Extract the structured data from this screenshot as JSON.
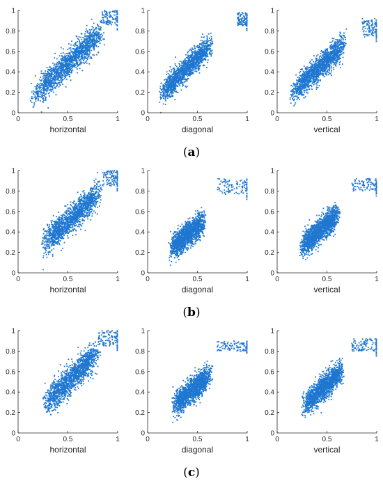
{
  "marker_color": "#1f77d0",
  "captions": [
    "(a)",
    "(b)",
    "(c)"
  ],
  "chart_data": [
    {
      "panel": "a",
      "type": "scatter",
      "xlabel": "horizontal",
      "ylabel": "",
      "xlim": [
        0,
        1
      ],
      "ylim": [
        0,
        1
      ],
      "xticks": [
        "0",
        "0.5",
        "1"
      ],
      "yticks": [
        "0",
        "0.2",
        "0.4",
        "0.6",
        "0.8",
        "1"
      ],
      "x_range": [
        0.0,
        1.0
      ],
      "trend": {
        "slope": 0.9,
        "intercept": 0.03
      },
      "spread_sd": 0.07,
      "top_cluster": {
        "x": [
          0.83,
          1.0
        ],
        "y": [
          0.86,
          1.0
        ]
      }
    },
    {
      "panel": "a",
      "type": "scatter",
      "xlabel": "diagonal",
      "ylabel": "",
      "xlim": [
        0,
        1
      ],
      "ylim": [
        0,
        1
      ],
      "xticks": [
        "0",
        "0.5",
        "1"
      ],
      "yticks": [
        "0",
        "0.2",
        "0.4",
        "0.6",
        "0.8",
        "1"
      ],
      "x_range": [
        0.02,
        0.75
      ],
      "trend": {
        "slope": 0.95,
        "intercept": 0.06
      },
      "spread_sd": 0.06,
      "top_cluster": {
        "x": [
          0.9,
          1.0
        ],
        "y": [
          0.85,
          0.98
        ]
      }
    },
    {
      "panel": "a",
      "type": "scatter",
      "xlabel": "vertical",
      "ylabel": "",
      "xlim": [
        0,
        1
      ],
      "ylim": [
        0,
        1
      ],
      "xticks": [
        "0",
        "0.5",
        "1"
      ],
      "yticks": [
        "0",
        "0.2",
        "0.4",
        "0.6",
        "0.8",
        "1"
      ],
      "x_range": [
        0.03,
        0.8
      ],
      "trend": {
        "slope": 0.9,
        "intercept": 0.06
      },
      "spread_sd": 0.06,
      "top_cluster": {
        "x": [
          0.85,
          1.0
        ],
        "y": [
          0.74,
          0.92
        ]
      }
    },
    {
      "panel": "b",
      "type": "scatter",
      "xlabel": "horizontal",
      "ylabel": "",
      "xlim": [
        0,
        1
      ],
      "ylim": [
        0,
        1
      ],
      "xticks": [
        "0",
        "0.5",
        "1"
      ],
      "yticks": [
        "0",
        "0.2",
        "0.4",
        "0.6",
        "0.8",
        "1"
      ],
      "x_range": [
        0.12,
        0.95
      ],
      "trend": {
        "slope": 0.92,
        "intercept": 0.04
      },
      "spread_sd": 0.07,
      "top_cluster": {
        "x": [
          0.85,
          1.0
        ],
        "y": [
          0.85,
          1.0
        ]
      }
    },
    {
      "panel": "b",
      "type": "scatter",
      "xlabel": "diagonal",
      "ylabel": "",
      "xlim": [
        0,
        1
      ],
      "ylim": [
        0,
        1
      ],
      "xticks": [
        "0",
        "0.5",
        "1"
      ],
      "yticks": [
        "0",
        "0.2",
        "0.4",
        "0.6",
        "0.8",
        "1"
      ],
      "x_range": [
        0.15,
        0.65
      ],
      "trend": {
        "slope": 0.8,
        "intercept": 0.05
      },
      "spread_sd": 0.06,
      "top_cluster": {
        "x": [
          0.7,
          1.0
        ],
        "y": [
          0.76,
          0.92
        ]
      }
    },
    {
      "panel": "b",
      "type": "scatter",
      "xlabel": "vertical",
      "ylabel": "",
      "xlim": [
        0,
        1
      ],
      "ylim": [
        0,
        1
      ],
      "xticks": [
        "0",
        "0.5",
        "1"
      ],
      "yticks": [
        "0",
        "0.2",
        "0.4",
        "0.6",
        "0.8",
        "1"
      ],
      "x_range": [
        0.15,
        0.7
      ],
      "trend": {
        "slope": 0.85,
        "intercept": 0.05
      },
      "spread_sd": 0.06,
      "top_cluster": {
        "x": [
          0.75,
          1.0
        ],
        "y": [
          0.8,
          0.92
        ]
      }
    },
    {
      "panel": "c",
      "type": "scatter",
      "xlabel": "horizontal",
      "ylabel": "",
      "xlim": [
        0,
        1
      ],
      "ylim": [
        0,
        1
      ],
      "xticks": [
        "0",
        "0.5",
        "1"
      ],
      "yticks": [
        "0",
        "0.2",
        "0.4",
        "0.6",
        "0.8",
        "1"
      ],
      "x_range": [
        0.15,
        0.92
      ],
      "trend": {
        "slope": 0.92,
        "intercept": 0.04
      },
      "spread_sd": 0.07,
      "top_cluster": {
        "x": [
          0.8,
          1.0
        ],
        "y": [
          0.85,
          1.0
        ]
      }
    },
    {
      "panel": "c",
      "type": "scatter",
      "xlabel": "diagonal",
      "ylabel": "",
      "xlim": [
        0,
        1
      ],
      "ylim": [
        0,
        1
      ],
      "xticks": [
        "0",
        "0.5",
        "1"
      ],
      "yticks": [
        "0",
        "0.2",
        "0.4",
        "0.6",
        "0.8",
        "1"
      ],
      "x_range": [
        0.17,
        0.72
      ],
      "trend": {
        "slope": 0.8,
        "intercept": 0.06
      },
      "spread_sd": 0.06,
      "top_cluster": {
        "x": [
          0.7,
          1.0
        ],
        "y": [
          0.8,
          0.9
        ]
      }
    },
    {
      "panel": "c",
      "type": "scatter",
      "xlabel": "vertical",
      "ylabel": "",
      "xlim": [
        0,
        1
      ],
      "ylim": [
        0,
        1
      ],
      "xticks": [
        "0",
        "0.5",
        "1"
      ],
      "yticks": [
        "0",
        "0.2",
        "0.4",
        "0.6",
        "0.8",
        "1"
      ],
      "x_range": [
        0.17,
        0.75
      ],
      "trend": {
        "slope": 0.85,
        "intercept": 0.05
      },
      "spread_sd": 0.06,
      "top_cluster": {
        "x": [
          0.75,
          1.0
        ],
        "y": [
          0.8,
          0.92
        ]
      }
    }
  ]
}
